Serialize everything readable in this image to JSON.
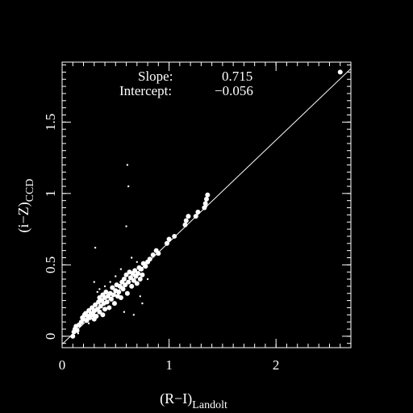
{
  "chart_data": {
    "type": "scatter",
    "title": "",
    "xlabel": "(R−I)",
    "xlabel_sub": "Landolt",
    "ylabel": "(i−Z)",
    "ylabel_sub": "CCD",
    "xlim": [
      0,
      2.7
    ],
    "ylim": [
      -0.08,
      1.92
    ],
    "x_ticks": [
      0,
      1,
      2
    ],
    "x_tick_labels": [
      "0",
      "1",
      "2"
    ],
    "y_ticks": [
      0,
      0.5,
      1,
      1.5
    ],
    "y_tick_labels": [
      "0",
      "0.5",
      "1",
      "1.5"
    ],
    "grid": false,
    "annotations": {
      "slope_label": "Slope:",
      "slope_value": "0.715",
      "intercept_label": "Intercept:",
      "intercept_value": "−0.056"
    },
    "fit_line": {
      "slope": 0.715,
      "intercept": -0.056,
      "x_range": [
        0,
        2.7
      ]
    },
    "colors": {
      "background": "#000000",
      "foreground": "#ffffff"
    },
    "series": [
      {
        "marker": "filled-circle",
        "points": [
          [
            0.1,
            0.0
          ],
          [
            0.11,
            0.03
          ],
          [
            0.12,
            0.05
          ],
          [
            0.13,
            0.07
          ],
          [
            0.14,
            0.04
          ],
          [
            0.16,
            0.08
          ],
          [
            0.18,
            0.1
          ],
          [
            0.19,
            0.13
          ],
          [
            0.2,
            0.12
          ],
          [
            0.21,
            0.15
          ],
          [
            0.22,
            0.16
          ],
          [
            0.23,
            0.11
          ],
          [
            0.24,
            0.14
          ],
          [
            0.25,
            0.18
          ],
          [
            0.26,
            0.13
          ],
          [
            0.27,
            0.16
          ],
          [
            0.28,
            0.2
          ],
          [
            0.29,
            0.15
          ],
          [
            0.3,
            0.12
          ],
          [
            0.3,
            0.18
          ],
          [
            0.31,
            0.22
          ],
          [
            0.32,
            0.14
          ],
          [
            0.33,
            0.19
          ],
          [
            0.34,
            0.24
          ],
          [
            0.35,
            0.17
          ],
          [
            0.35,
            0.27
          ],
          [
            0.36,
            0.21
          ],
          [
            0.37,
            0.25
          ],
          [
            0.38,
            0.15
          ],
          [
            0.38,
            0.29
          ],
          [
            0.39,
            0.23
          ],
          [
            0.4,
            0.19
          ],
          [
            0.4,
            0.27
          ],
          [
            0.41,
            0.31
          ],
          [
            0.42,
            0.24
          ],
          [
            0.43,
            0.28
          ],
          [
            0.44,
            0.2
          ],
          [
            0.45,
            0.3
          ],
          [
            0.46,
            0.26
          ],
          [
            0.47,
            0.34
          ],
          [
            0.48,
            0.29
          ],
          [
            0.49,
            0.23
          ],
          [
            0.5,
            0.32
          ],
          [
            0.51,
            0.36
          ],
          [
            0.52,
            0.28
          ],
          [
            0.53,
            0.31
          ],
          [
            0.54,
            0.35
          ],
          [
            0.55,
            0.27
          ],
          [
            0.56,
            0.38
          ],
          [
            0.57,
            0.33
          ],
          [
            0.58,
            0.4
          ],
          [
            0.59,
            0.36
          ],
          [
            0.6,
            0.43
          ],
          [
            0.61,
            0.3
          ],
          [
            0.62,
            0.38
          ],
          [
            0.63,
            0.45
          ],
          [
            0.64,
            0.41
          ],
          [
            0.65,
            0.35
          ],
          [
            0.66,
            0.44
          ],
          [
            0.67,
            0.39
          ],
          [
            0.68,
            0.46
          ],
          [
            0.69,
            0.42
          ],
          [
            0.7,
            0.37
          ],
          [
            0.71,
            0.44
          ],
          [
            0.72,
            0.48
          ],
          [
            0.73,
            0.4
          ],
          [
            0.74,
            0.47
          ],
          [
            0.75,
            0.43
          ],
          [
            0.76,
            0.51
          ],
          [
            0.78,
            0.49
          ],
          [
            0.8,
            0.52
          ],
          [
            0.82,
            0.54
          ],
          [
            0.85,
            0.57
          ],
          [
            0.88,
            0.6
          ],
          [
            0.9,
            0.58
          ],
          [
            0.98,
            0.65
          ],
          [
            1.0,
            0.68
          ],
          [
            1.05,
            0.7
          ],
          [
            1.15,
            0.78
          ],
          [
            1.16,
            0.81
          ],
          [
            1.18,
            0.84
          ],
          [
            1.25,
            0.84
          ],
          [
            1.27,
            0.87
          ],
          [
            1.33,
            0.9
          ],
          [
            1.34,
            0.93
          ],
          [
            1.35,
            0.96
          ],
          [
            1.36,
            0.99
          ],
          [
            2.6,
            1.85
          ]
        ]
      },
      {
        "marker": "small-dot",
        "points": [
          [
            0.15,
            0.02
          ],
          [
            0.25,
            0.09
          ],
          [
            0.3,
            0.38
          ],
          [
            0.31,
            0.62
          ],
          [
            0.33,
            0.31
          ],
          [
            0.35,
            0.33
          ],
          [
            0.4,
            0.35
          ],
          [
            0.45,
            0.38
          ],
          [
            0.5,
            0.42
          ],
          [
            0.55,
            0.47
          ],
          [
            0.58,
            0.17
          ],
          [
            0.6,
            0.77
          ],
          [
            0.61,
            1.2
          ],
          [
            0.62,
            1.05
          ],
          [
            0.65,
            0.55
          ],
          [
            0.67,
            0.15
          ],
          [
            0.7,
            0.52
          ],
          [
            0.73,
            0.28
          ],
          [
            0.75,
            0.23
          ],
          [
            0.8,
            0.4
          ],
          [
            1.35,
            0.91
          ]
        ]
      }
    ]
  }
}
